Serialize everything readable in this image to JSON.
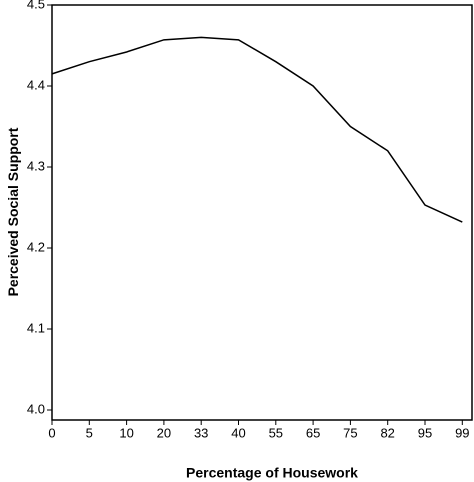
{
  "chart_data": {
    "type": "line",
    "x_label": "Percentage of Housework",
    "y_label": "Perceived Social Support",
    "categories": [
      "0",
      "5",
      "10",
      "20",
      "33",
      "40",
      "55",
      "65",
      "75",
      "82",
      "95",
      "99"
    ],
    "series": [
      {
        "name": "Perceived Social Support",
        "color": "#000000",
        "values": [
          4.415,
          4.43,
          4.442,
          4.457,
          4.46,
          4.457,
          4.43,
          4.4,
          4.35,
          4.32,
          4.253,
          4.232
        ]
      }
    ],
    "ylim": [
      4.0,
      4.5
    ],
    "yticks": [
      {
        "value": 4.0,
        "label": "4.0"
      },
      4.1,
      4.2,
      4.3,
      4.4,
      {
        "value": 4.5,
        "label": "4.5"
      }
    ]
  }
}
